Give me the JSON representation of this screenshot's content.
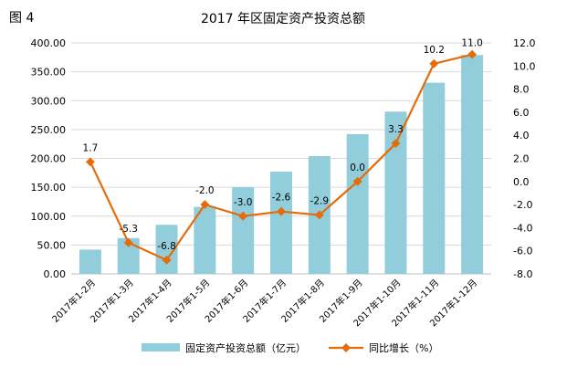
{
  "figure_label": "图 4",
  "colors": {
    "bar": "#92cddc",
    "line": "#e46c0a",
    "grid": "#d9d9d9"
  },
  "chart_data": {
    "type": "bar",
    "title": "2017 年区固定资产投资总额",
    "categories": [
      "2017年1-2月",
      "2017年1-3月",
      "2017年1-4月",
      "2017年1-5月",
      "2017年1-6月",
      "2017年1-7月",
      "2017年1-8月",
      "2017年1-9月",
      "2017年1-10月",
      "2017年1-11月",
      "2017年1-12月"
    ],
    "left_axis": {
      "ylim": [
        0,
        400
      ],
      "ticks": [
        "0.00",
        "50.00",
        "100.00",
        "150.00",
        "200.00",
        "250.00",
        "300.00",
        "350.00",
        "400.00"
      ]
    },
    "right_axis": {
      "ylim": [
        -8,
        12
      ],
      "ticks": [
        "-8.0",
        "-6.0",
        "-4.0",
        "-2.0",
        "0.0",
        "2.0",
        "4.0",
        "6.0",
        "8.0",
        "10.0",
        "12.0"
      ]
    },
    "grid": "horizontal",
    "legend_position": "bottom",
    "series": [
      {
        "name": "固定资产投资总额（亿元）",
        "type": "bar",
        "axis": "left",
        "values": [
          42,
          62,
          85,
          116,
          150,
          177,
          204,
          242,
          281,
          331,
          379
        ]
      },
      {
        "name": "同比增长（%）",
        "type": "line",
        "axis": "right",
        "values": [
          1.7,
          -5.3,
          -6.8,
          -2.0,
          -3.0,
          -2.6,
          -2.9,
          0.0,
          3.3,
          10.2,
          11.0
        ],
        "labels": [
          "1.7",
          "-5.3",
          "-6.8",
          "-2.0",
          "-3.0",
          "-2.6",
          "-2.9",
          "0.0",
          "3.3",
          "10.2",
          "11.0"
        ]
      }
    ]
  }
}
